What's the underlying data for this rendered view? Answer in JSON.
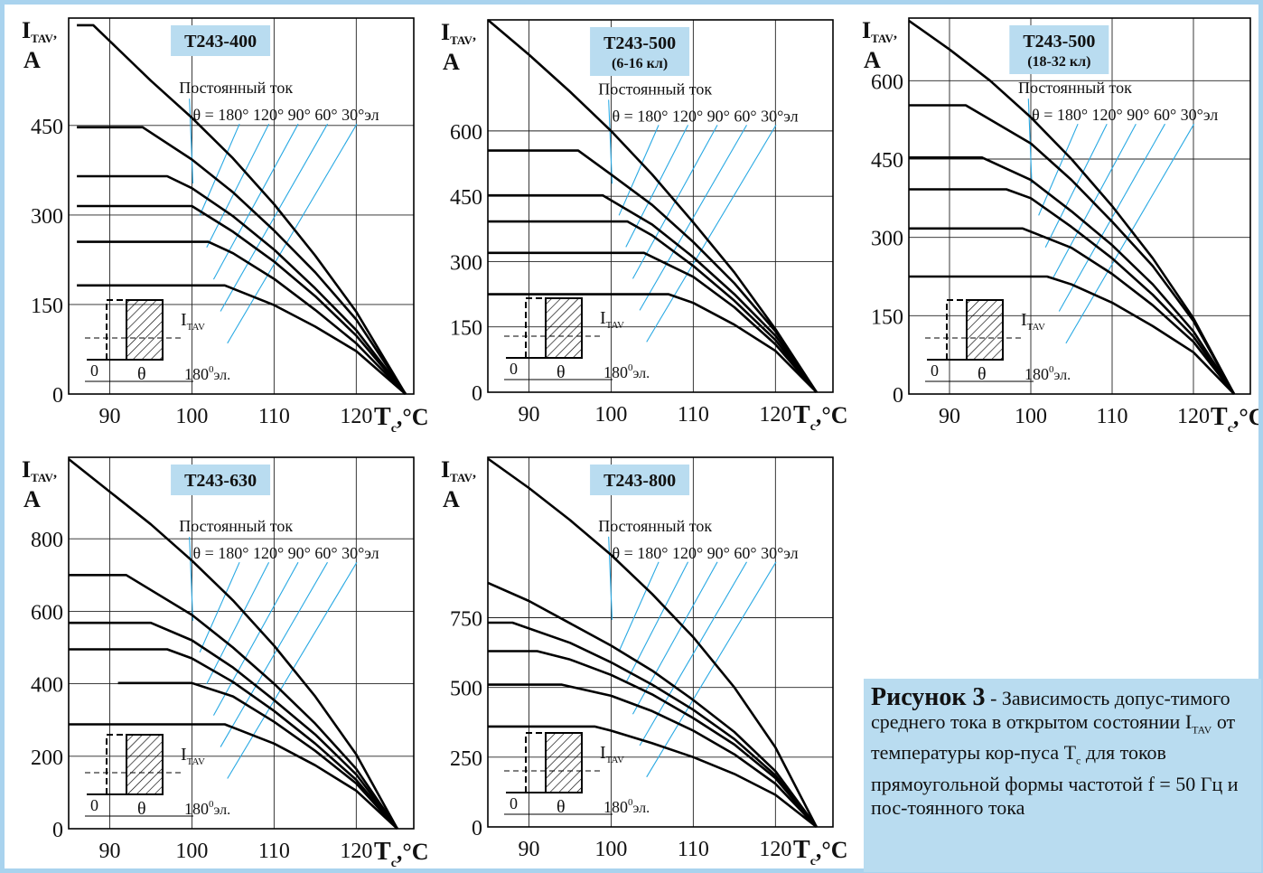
{
  "figure": {
    "caption": {
      "title": "Рисунок 3",
      "sep": " - ",
      "text_a": "Зависимость допус-тимого среднего тока в открытом состоянии I",
      "sub_tav": "TAV",
      "text_b": " от температуры кор-пуса  T",
      "sub_c": "c",
      "text_c": " для токов прямоугольной формы частотой f = 50 Гц и пос-тоянного тока"
    },
    "colors": {
      "border": "#a9d3ee",
      "caption_bg": "#b9dcf0",
      "title_box": "#b9dcf0",
      "leader": "#29a9e3",
      "curve": "#000000"
    }
  },
  "chart_data": [
    {
      "type": "line",
      "title": "Т243-400",
      "ylabel": "ITAV, A",
      "xlabel": "Tc,°C",
      "xlim": [
        85,
        127
      ],
      "ylim": [
        0,
        630
      ],
      "xticks": [
        90,
        100,
        110,
        120
      ],
      "yticks": [
        0,
        150,
        300,
        450
      ],
      "grid": true,
      "annotation_dc": "Постоянный ток",
      "annotation_theta": "θ = 180° 120° 90° 60° 30°эл",
      "series": [
        {
          "name": "Постоянный ток",
          "x": [
            86,
            88,
            95,
            100,
            105,
            110,
            115,
            120,
            126
          ],
          "y": [
            618,
            618,
            525,
            463,
            395,
            318,
            232,
            138,
            0
          ]
        },
        {
          "name": "180°",
          "x": [
            86,
            94,
            100,
            105,
            110,
            115,
            120,
            126
          ],
          "y": [
            447,
            447,
            393,
            338,
            274,
            204,
            125,
            0
          ]
        },
        {
          "name": "120°",
          "x": [
            86,
            97,
            100,
            105,
            110,
            115,
            120,
            126
          ],
          "y": [
            365,
            365,
            345,
            298,
            242,
            177,
            107,
            0
          ]
        },
        {
          "name": "90°",
          "x": [
            86,
            100,
            105,
            110,
            115,
            120,
            126
          ],
          "y": [
            315,
            315,
            272,
            222,
            164,
            98,
            0
          ]
        },
        {
          "name": "60°",
          "x": [
            86,
            102,
            105,
            110,
            115,
            120,
            126
          ],
          "y": [
            255,
            255,
            236,
            193,
            141,
            85,
            0
          ]
        },
        {
          "name": "30°",
          "x": [
            86,
            104,
            110,
            115,
            120,
            126
          ],
          "y": [
            182,
            182,
            149,
            113,
            72,
            0
          ]
        }
      ]
    },
    {
      "type": "line",
      "title": "Т243-500",
      "subtitle": "(6-16 кл)",
      "ylabel": "ITAV, A",
      "xlabel": "Tc,°C",
      "xlim": [
        85,
        127
      ],
      "ylim": [
        0,
        855
      ],
      "xticks": [
        90,
        100,
        110,
        120
      ],
      "yticks": [
        0,
        150,
        300,
        450,
        600
      ],
      "grid": true,
      "annotation_dc": "Постоянный ток",
      "annotation_theta": "θ = 180° 120° 90° 60° 30°эл",
      "series": [
        {
          "name": "Постоянный ток",
          "x": [
            85,
            90,
            95,
            100,
            105,
            110,
            115,
            120,
            125
          ],
          "y": [
            855,
            775,
            690,
            600,
            500,
            390,
            275,
            145,
            0
          ]
        },
        {
          "name": "180°",
          "x": [
            85,
            96,
            100,
            105,
            110,
            115,
            120,
            125
          ],
          "y": [
            555,
            555,
            500,
            430,
            345,
            250,
            140,
            0
          ]
        },
        {
          "name": "120°",
          "x": [
            85,
            99,
            105,
            110,
            115,
            120,
            125
          ],
          "y": [
            452,
            452,
            385,
            310,
            225,
            130,
            0
          ]
        },
        {
          "name": "90°",
          "x": [
            85,
            102,
            105,
            110,
            115,
            120,
            125
          ],
          "y": [
            392,
            392,
            360,
            290,
            210,
            120,
            0
          ]
        },
        {
          "name": "60°",
          "x": [
            85,
            104,
            110,
            115,
            120,
            125
          ],
          "y": [
            320,
            320,
            265,
            195,
            110,
            0
          ]
        },
        {
          "name": "30°",
          "x": [
            85,
            107,
            110,
            115,
            120,
            125
          ],
          "y": [
            225,
            225,
            205,
            155,
            95,
            0
          ]
        }
      ]
    },
    {
      "type": "line",
      "title": "Т243-500",
      "subtitle": "(18-32 кл)",
      "ylabel": "ITAV, A",
      "xlabel": "Tc,°C",
      "xlim": [
        85,
        127
      ],
      "ylim": [
        0,
        720
      ],
      "xticks": [
        90,
        100,
        110,
        120
      ],
      "yticks": [
        0,
        150,
        300,
        450,
        600
      ],
      "grid": true,
      "annotation_dc": "Постоянный ток",
      "annotation_theta": "θ = 180° 120° 90° 60° 30°эл",
      "series": [
        {
          "name": "Постоянный ток",
          "x": [
            85,
            90,
            95,
            100,
            105,
            110,
            115,
            120,
            125
          ],
          "y": [
            715,
            660,
            600,
            530,
            450,
            360,
            260,
            145,
            0
          ]
        },
        {
          "name": "180°",
          "x": [
            85,
            92,
            100,
            105,
            110,
            115,
            120,
            125
          ],
          "y": [
            553,
            553,
            480,
            410,
            330,
            245,
            140,
            0
          ]
        },
        {
          "name": "120°",
          "x": [
            85,
            94,
            100,
            105,
            110,
            115,
            120,
            125
          ],
          "y": [
            453,
            453,
            410,
            350,
            285,
            210,
            120,
            0
          ]
        },
        {
          "name": "90°",
          "x": [
            85,
            97,
            100,
            105,
            110,
            115,
            120,
            125
          ],
          "y": [
            392,
            392,
            375,
            320,
            260,
            190,
            110,
            0
          ]
        },
        {
          "name": "60°",
          "x": [
            85,
            99,
            105,
            110,
            115,
            120,
            125
          ],
          "y": [
            317,
            317,
            280,
            230,
            170,
            100,
            0
          ]
        },
        {
          "name": "30°",
          "x": [
            85,
            102,
            105,
            110,
            115,
            120,
            125
          ],
          "y": [
            225,
            225,
            210,
            175,
            130,
            80,
            0
          ]
        }
      ]
    },
    {
      "type": "line",
      "title": "Т243-630",
      "ylabel": "ITAV, A",
      "xlabel": "Tc,°C",
      "xlim": [
        85,
        127
      ],
      "ylim": [
        0,
        1025
      ],
      "xticks": [
        90,
        100,
        110,
        120
      ],
      "yticks": [
        0,
        200,
        400,
        600,
        800
      ],
      "grid": true,
      "annotation_dc": "Постоянный ток",
      "annotation_theta": "θ = 180° 120° 90° 60° 30°эл",
      "series": [
        {
          "name": "Постоянный ток",
          "x": [
            85,
            90,
            95,
            100,
            105,
            110,
            115,
            120,
            125
          ],
          "y": [
            1020,
            930,
            840,
            740,
            630,
            505,
            365,
            205,
            0
          ]
        },
        {
          "name": "180°",
          "x": [
            85,
            92,
            100,
            105,
            110,
            115,
            120,
            125
          ],
          "y": [
            700,
            700,
            590,
            500,
            400,
            290,
            165,
            0
          ]
        },
        {
          "name": "120°",
          "x": [
            85,
            95,
            100,
            105,
            110,
            115,
            120,
            125
          ],
          "y": [
            568,
            568,
            520,
            445,
            355,
            260,
            150,
            0
          ]
        },
        {
          "name": "90°",
          "x": [
            85,
            97,
            100,
            105,
            110,
            115,
            120,
            125
          ],
          "y": [
            495,
            495,
            470,
            405,
            325,
            235,
            135,
            0
          ]
        },
        {
          "name": "60°",
          "x": [
            91,
            100,
            105,
            110,
            115,
            120,
            125
          ],
          "y": [
            402,
            402,
            365,
            295,
            215,
            125,
            0
          ]
        },
        {
          "name": "30°",
          "x": [
            85,
            104,
            110,
            115,
            120,
            125
          ],
          "y": [
            288,
            288,
            235,
            175,
            105,
            0
          ]
        }
      ]
    },
    {
      "type": "line",
      "title": "Т243-800",
      "ylabel": "ITAV, A",
      "xlabel": "Tc,°C",
      "xlim": [
        85,
        127
      ],
      "ylim": [
        0,
        1325
      ],
      "xticks": [
        90,
        100,
        110,
        120
      ],
      "yticks": [
        0,
        250,
        500,
        750
      ],
      "grid": true,
      "annotation_dc": "Постоянный ток",
      "annotation_theta": "θ = 180° 120° 90° 60° 30°эл",
      "series": [
        {
          "name": "Постоянный ток",
          "x": [
            85,
            90,
            95,
            100,
            105,
            110,
            115,
            120,
            125
          ],
          "y": [
            1320,
            1215,
            1100,
            975,
            835,
            680,
            500,
            285,
            0
          ]
        },
        {
          "name": "180°",
          "x": [
            85,
            90,
            95,
            100,
            105,
            110,
            115,
            120,
            125
          ],
          "y": [
            875,
            810,
            730,
            650,
            560,
            455,
            340,
            200,
            0
          ]
        },
        {
          "name": "120°",
          "x": [
            85,
            88,
            95,
            100,
            105,
            110,
            115,
            120,
            125
          ],
          "y": [
            732,
            732,
            660,
            590,
            510,
            420,
            315,
            185,
            0
          ]
        },
        {
          "name": "90°",
          "x": [
            85,
            91,
            95,
            100,
            105,
            110,
            115,
            120,
            125
          ],
          "y": [
            630,
            630,
            600,
            545,
            475,
            390,
            295,
            175,
            0
          ]
        },
        {
          "name": "60°",
          "x": [
            85,
            94,
            100,
            105,
            110,
            115,
            120,
            125
          ],
          "y": [
            510,
            510,
            470,
            415,
            345,
            260,
            155,
            0
          ]
        },
        {
          "name": "30°",
          "x": [
            85,
            98,
            100,
            105,
            110,
            115,
            120,
            125
          ],
          "y": [
            360,
            360,
            345,
            300,
            250,
            190,
            115,
            0
          ]
        }
      ]
    }
  ]
}
